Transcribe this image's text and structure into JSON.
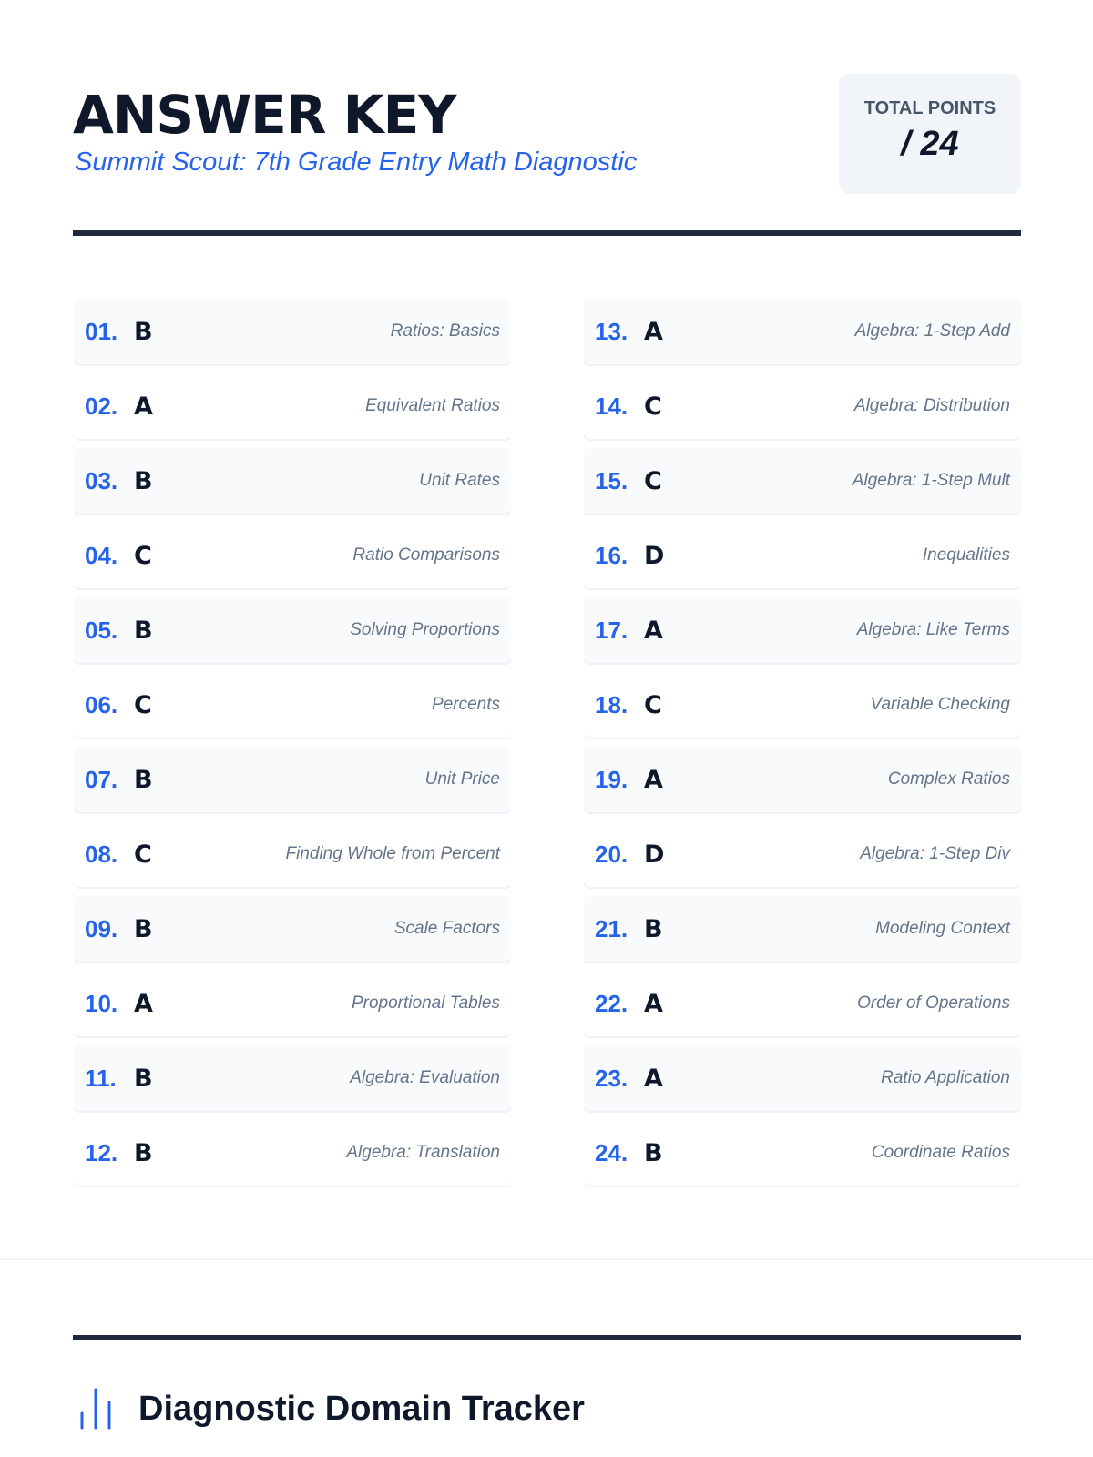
{
  "header": {
    "title": "ANSWER KEY",
    "subtitle": "Summit Scout: 7th Grade Entry Math Diagnostic",
    "total_points_label": "TOTAL POINTS",
    "total_points_value": "/ 24"
  },
  "answers": [
    {
      "num": "01.",
      "answer": "B",
      "topic": "Ratios: Basics"
    },
    {
      "num": "02.",
      "answer": "A",
      "topic": "Equivalent Ratios"
    },
    {
      "num": "03.",
      "answer": "B",
      "topic": "Unit Rates"
    },
    {
      "num": "04.",
      "answer": "C",
      "topic": "Ratio Comparisons"
    },
    {
      "num": "05.",
      "answer": "B",
      "topic": "Solving Proportions"
    },
    {
      "num": "06.",
      "answer": "C",
      "topic": "Percents"
    },
    {
      "num": "07.",
      "answer": "B",
      "topic": "Unit Price"
    },
    {
      "num": "08.",
      "answer": "C",
      "topic": "Finding Whole from Percent"
    },
    {
      "num": "09.",
      "answer": "B",
      "topic": "Scale Factors"
    },
    {
      "num": "10.",
      "answer": "A",
      "topic": "Proportional Tables"
    },
    {
      "num": "11.",
      "answer": "B",
      "topic": "Algebra: Evaluation"
    },
    {
      "num": "12.",
      "answer": "B",
      "topic": "Algebra: Translation"
    },
    {
      "num": "13.",
      "answer": "A",
      "topic": "Algebra: 1-Step Add"
    },
    {
      "num": "14.",
      "answer": "C",
      "topic": "Algebra: Distribution"
    },
    {
      "num": "15.",
      "answer": "C",
      "topic": "Algebra: 1-Step Mult"
    },
    {
      "num": "16.",
      "answer": "D",
      "topic": "Inequalities"
    },
    {
      "num": "17.",
      "answer": "A",
      "topic": "Algebra: Like Terms"
    },
    {
      "num": "18.",
      "answer": "C",
      "topic": "Variable Checking"
    },
    {
      "num": "19.",
      "answer": "A",
      "topic": "Complex Ratios"
    },
    {
      "num": "20.",
      "answer": "D",
      "topic": "Algebra: 1-Step Div"
    },
    {
      "num": "21.",
      "answer": "B",
      "topic": "Modeling Context"
    },
    {
      "num": "22.",
      "answer": "A",
      "topic": "Order of Operations"
    },
    {
      "num": "23.",
      "answer": "A",
      "topic": "Ratio Application"
    },
    {
      "num": "24.",
      "answer": "B",
      "topic": "Coordinate Ratios"
    }
  ],
  "tracker": {
    "icon": "bar-chart-icon",
    "title": "Diagnostic Domain Tracker"
  },
  "colors": {
    "accent": "#2563eb",
    "ink": "#0f172a"
  }
}
